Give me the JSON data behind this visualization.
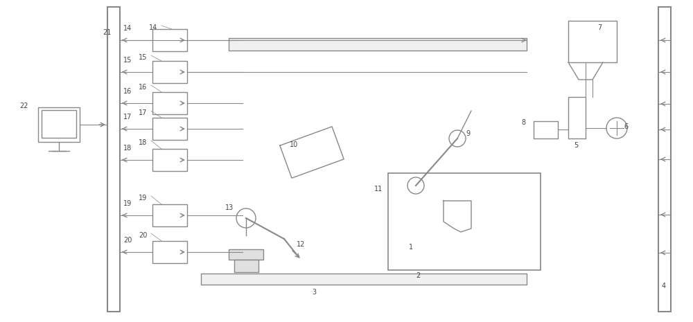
{
  "bg_color": "#ffffff",
  "line_color": "#888888",
  "lw": 1.0,
  "fig_width": 10.0,
  "fig_height": 4.65,
  "dpi": 100
}
